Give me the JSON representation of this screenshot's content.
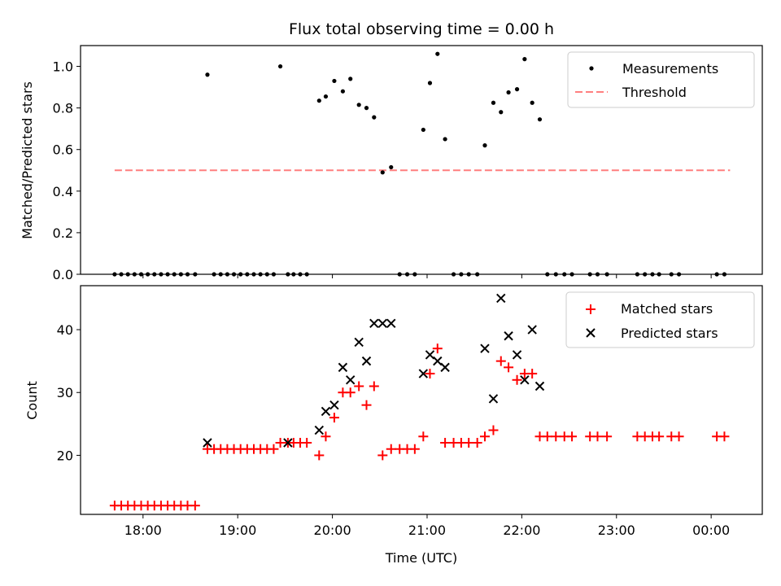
{
  "chart_data": [
    {
      "type": "scatter",
      "title": "Flux total observing time = 0.00 h",
      "xlabel": "",
      "ylabel": "Matched/Predicted stars",
      "ylim": [
        0,
        1.1
      ],
      "yticks": [
        "0.0",
        "0.2",
        "0.4",
        "0.6",
        "0.8",
        "1.0"
      ],
      "ytick_values": [
        0,
        0.2,
        0.4,
        0.6,
        0.8,
        1.0
      ],
      "legend_position": "top-right",
      "legend": [
        "Measurements",
        "Threshold"
      ],
      "threshold": {
        "name": "Threshold",
        "y": 0.5,
        "x_start": -0.3,
        "x_end": 6.2,
        "color": "#ff7f7f"
      },
      "series": [
        {
          "name": "Measurements",
          "color": "#000000",
          "x": [
            -0.3,
            -0.23,
            -0.16,
            -0.09,
            -0.02,
            0.05,
            0.12,
            0.19,
            0.26,
            0.33,
            0.4,
            0.47,
            0.55,
            0.68,
            0.75,
            0.82,
            0.89,
            0.96,
            1.03,
            1.1,
            1.17,
            1.24,
            1.31,
            1.38,
            1.45,
            1.53,
            1.59,
            1.66,
            1.73,
            1.86,
            1.93,
            2.02,
            2.11,
            2.19,
            2.28,
            2.36,
            2.44,
            2.53,
            2.62,
            2.71,
            2.79,
            2.87,
            2.96,
            3.03,
            3.11,
            3.19,
            3.28,
            3.36,
            3.44,
            3.53,
            3.61,
            3.7,
            3.78,
            3.86,
            3.95,
            4.03,
            4.11,
            4.19,
            4.27,
            4.36,
            4.45,
            4.53,
            4.72,
            4.8,
            4.9,
            5.22,
            5.3,
            5.38,
            5.45,
            5.58,
            5.66,
            6.06,
            6.14
          ],
          "y": [
            0,
            0,
            0,
            0,
            0,
            0,
            0,
            0,
            0,
            0,
            0,
            0,
            0,
            0.96,
            0,
            0,
            0,
            0,
            0,
            0,
            0,
            0,
            0,
            0,
            1.0,
            0,
            0,
            0,
            0,
            0.835,
            0.855,
            0.93,
            0.88,
            0.94,
            0.815,
            0.8,
            0.755,
            0.49,
            0.515,
            0,
            0,
            0,
            0.695,
            0.92,
            1.06,
            0.65,
            0,
            0,
            0,
            0,
            0.62,
            0.825,
            0.78,
            0.875,
            0.89,
            1.035,
            0.825,
            0.745,
            0,
            0,
            0,
            0,
            0,
            0,
            0,
            0,
            0,
            0,
            0,
            0,
            0,
            0,
            0
          ]
        }
      ]
    },
    {
      "type": "scatter",
      "title": "",
      "xlabel": "Time (UTC)",
      "ylabel": "Count",
      "ylim": [
        10.6,
        47
      ],
      "yticks": [
        "20",
        "30",
        "40"
      ],
      "ytick_values": [
        20,
        30,
        40
      ],
      "xlim": [
        -0.66,
        6.54
      ],
      "xticks": [
        "18:00",
        "19:00",
        "20:00",
        "21:00",
        "22:00",
        "23:00",
        "00:00"
      ],
      "xtick_values": [
        0,
        1,
        2,
        3,
        4,
        5,
        6
      ],
      "legend_position": "top-right",
      "legend": [
        "Matched stars",
        "Predicted stars"
      ],
      "series": [
        {
          "name": "Matched stars",
          "color": "#ff0000",
          "marker": "+",
          "x": [
            -0.3,
            -0.23,
            -0.16,
            -0.09,
            -0.02,
            0.05,
            0.12,
            0.19,
            0.26,
            0.33,
            0.4,
            0.47,
            0.55,
            0.68,
            0.75,
            0.82,
            0.89,
            0.96,
            1.03,
            1.1,
            1.17,
            1.24,
            1.31,
            1.38,
            1.45,
            1.53,
            1.59,
            1.66,
            1.73,
            1.86,
            1.93,
            2.02,
            2.11,
            2.19,
            2.28,
            2.36,
            2.44,
            2.53,
            2.62,
            2.71,
            2.79,
            2.87,
            2.96,
            3.03,
            3.11,
            3.19,
            3.28,
            3.36,
            3.44,
            3.53,
            3.61,
            3.7,
            3.78,
            3.86,
            3.95,
            4.03,
            4.11,
            4.19,
            4.27,
            4.36,
            4.45,
            4.53,
            4.72,
            4.8,
            4.9,
            5.22,
            5.3,
            5.38,
            5.45,
            5.58,
            5.66,
            6.06,
            6.14
          ],
          "y": [
            12,
            12,
            12,
            12,
            12,
            12,
            12,
            12,
            12,
            12,
            12,
            12,
            12,
            21,
            21,
            21,
            21,
            21,
            21,
            21,
            21,
            21,
            21,
            21,
            22,
            22,
            22,
            22,
            22,
            20,
            23,
            26,
            30,
            30,
            31,
            28,
            31,
            20,
            21,
            21,
            21,
            21,
            23,
            33,
            37,
            22,
            22,
            22,
            22,
            22,
            23,
            24,
            35,
            34,
            32,
            33,
            33,
            23,
            23,
            23,
            23,
            23,
            23,
            23,
            23,
            23,
            23,
            23,
            23,
            23,
            23,
            23,
            23
          ]
        },
        {
          "name": "Predicted stars",
          "color": "#000000",
          "marker": "x",
          "x": [
            0.68,
            1.53,
            1.86,
            1.93,
            2.02,
            2.11,
            2.19,
            2.28,
            2.36,
            2.44,
            2.53,
            2.62,
            2.96,
            3.03,
            3.11,
            3.19,
            3.61,
            3.7,
            3.78,
            3.86,
            3.95,
            4.03,
            4.11,
            4.19
          ],
          "y": [
            22,
            22,
            24,
            27,
            28,
            34,
            32,
            38,
            35,
            41,
            41,
            41,
            33,
            36,
            35,
            34,
            37,
            29,
            45,
            39,
            36,
            32,
            40,
            31
          ]
        }
      ]
    }
  ]
}
